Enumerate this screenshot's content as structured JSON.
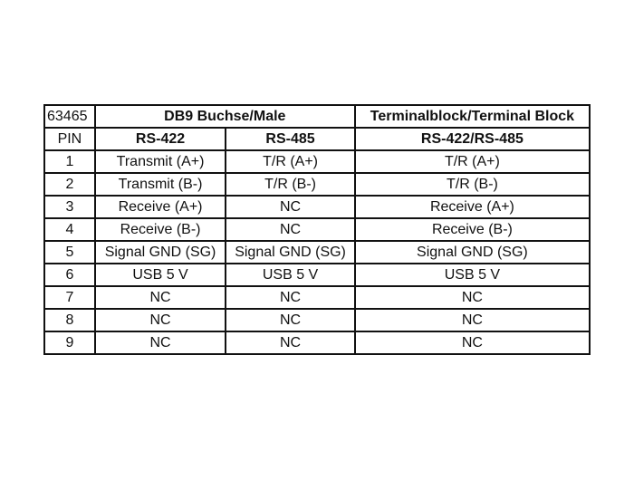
{
  "header": {
    "id": "63465",
    "group_db9": "DB9 Buchse/Male",
    "group_terminal": "Terminalblock/Terminal Block"
  },
  "subheader": {
    "pin": "PIN",
    "rs422": "RS-422",
    "rs485": "RS-485",
    "terminal": "RS-422/RS-485"
  },
  "rows": [
    {
      "pin": "1",
      "rs422": "Transmit (A+)",
      "rs485": "T/R (A+)",
      "terminal": "T/R (A+)"
    },
    {
      "pin": "2",
      "rs422": "Transmit (B-)",
      "rs485": "T/R (B-)",
      "terminal": "T/R (B-)"
    },
    {
      "pin": "3",
      "rs422": "Receive (A+)",
      "rs485": "NC",
      "terminal": "Receive (A+)"
    },
    {
      "pin": "4",
      "rs422": "Receive (B-)",
      "rs485": "NC",
      "terminal": "Receive (B-)"
    },
    {
      "pin": "5",
      "rs422": "Signal GND (SG)",
      "rs485": "Signal GND (SG)",
      "terminal": "Signal GND (SG)"
    },
    {
      "pin": "6",
      "rs422": "USB 5 V",
      "rs485": "USB 5 V",
      "terminal": "USB 5 V"
    },
    {
      "pin": "7",
      "rs422": "NC",
      "rs485": "NC",
      "terminal": "NC"
    },
    {
      "pin": "8",
      "rs422": "NC",
      "rs485": "NC",
      "terminal": "NC"
    },
    {
      "pin": "9",
      "rs422": "NC",
      "rs485": "NC",
      "terminal": "NC"
    }
  ]
}
